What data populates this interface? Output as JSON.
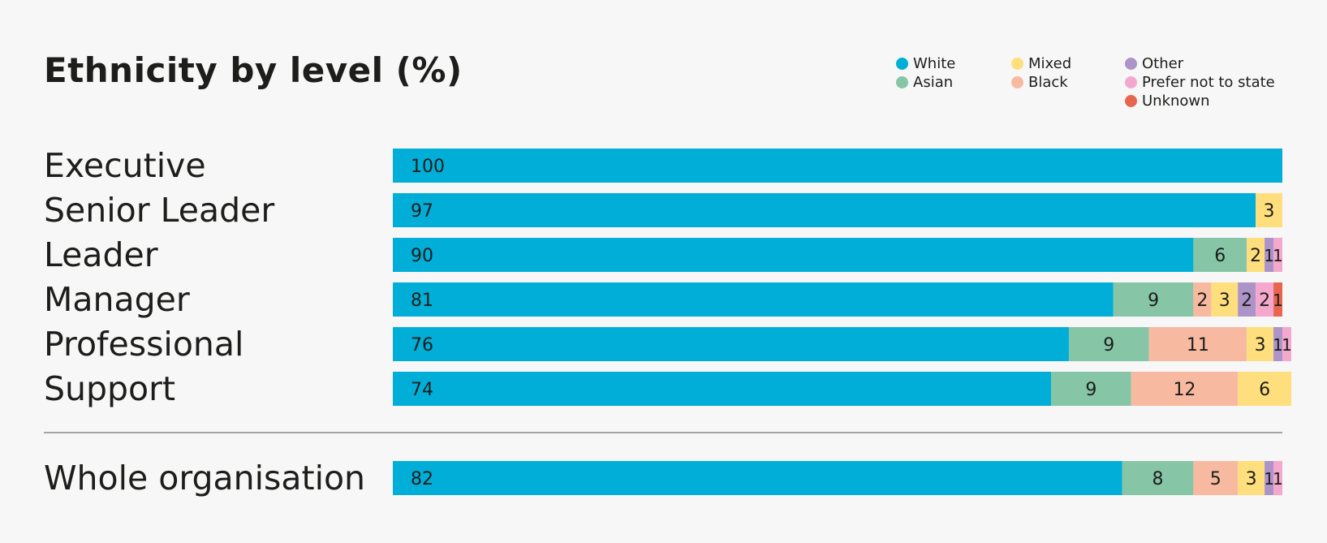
{
  "chart_data": {
    "type": "bar",
    "orientation": "horizontal",
    "stacked": true,
    "title": "Ethnicity by level (%)",
    "xlim": [
      0,
      100
    ],
    "categories": [
      "Executive",
      "Senior Leader",
      "Leader",
      "Manager",
      "Professional",
      "Support",
      "Whole organisation"
    ],
    "series": [
      {
        "name": "White",
        "color": "#00aed8",
        "values": [
          100,
          97,
          90,
          81,
          76,
          74,
          82
        ]
      },
      {
        "name": "Asian",
        "color": "#86c6a6",
        "values": [
          0,
          0,
          6,
          9,
          9,
          9,
          8
        ]
      },
      {
        "name": "Black",
        "color": "#f8b9a1",
        "values": [
          0,
          0,
          0,
          2,
          11,
          12,
          5
        ]
      },
      {
        "name": "Mixed",
        "color": "#ffdf7d",
        "values": [
          0,
          3,
          2,
          3,
          3,
          6,
          3
        ]
      },
      {
        "name": "Other",
        "color": "#ac93c8",
        "values": [
          0,
          0,
          1,
          2,
          1,
          0,
          1
        ]
      },
      {
        "name": "Prefer not to state",
        "color": "#f4a8cd",
        "values": [
          0,
          0,
          1,
          2,
          1,
          0,
          1
        ]
      },
      {
        "name": "Unknown",
        "color": "#e8664f",
        "values": [
          0,
          0,
          0,
          1,
          0,
          0,
          0
        ]
      }
    ],
    "legend_position": "top-right"
  }
}
